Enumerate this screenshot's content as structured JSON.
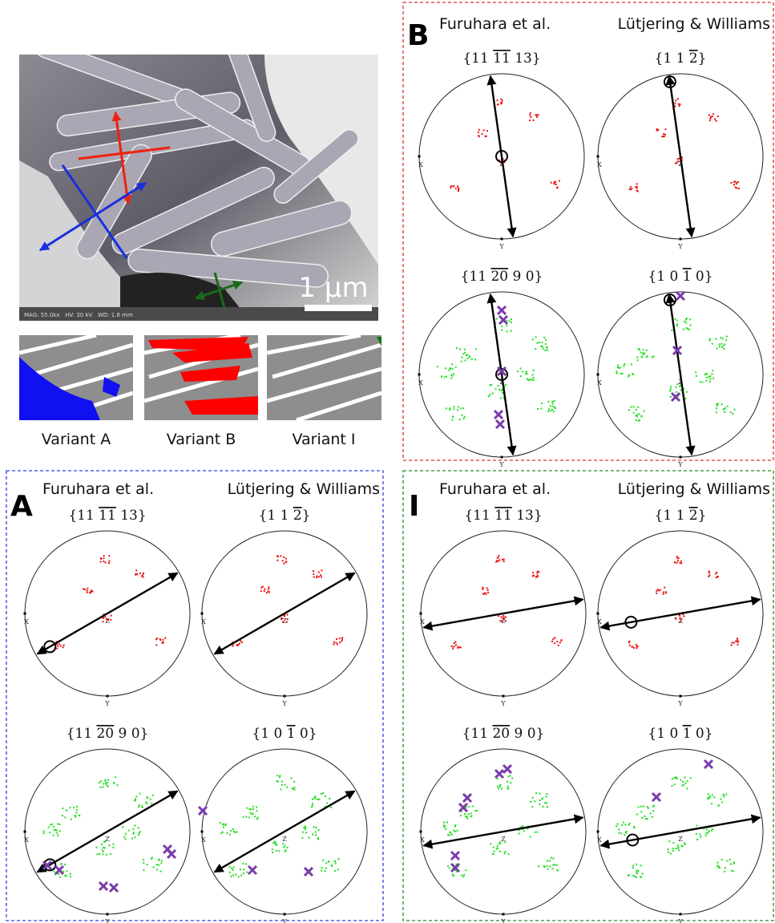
{
  "sem_image": {
    "scale_bar": "1 µm",
    "info": "MAG: 55.0kx   HV: 30 kV   WD: 1.6 mm"
  },
  "variant_maps": [
    "Variant A",
    "Variant B",
    "Variant I"
  ],
  "pole_figures": {
    "sources": [
      "Furuhara et al.",
      "Lütjering & Williams"
    ],
    "planes": [
      {
        "open": "{11 ",
        "bar": "11",
        "close": " 13}"
      },
      {
        "open": "{1 1 ",
        "bar": "2",
        "close": "}"
      },
      {
        "open": "{11 ",
        "bar": "20",
        "close": " 9 0}"
      },
      {
        "open": "{1 0 ",
        "bar": "1",
        "close": " 0}"
      }
    ],
    "axes": {
      "x": "X",
      "y": "Y",
      "z": "Z"
    }
  },
  "panels": [
    {
      "letter": "B"
    },
    {
      "letter": "A"
    },
    {
      "letter": "I"
    }
  ]
}
